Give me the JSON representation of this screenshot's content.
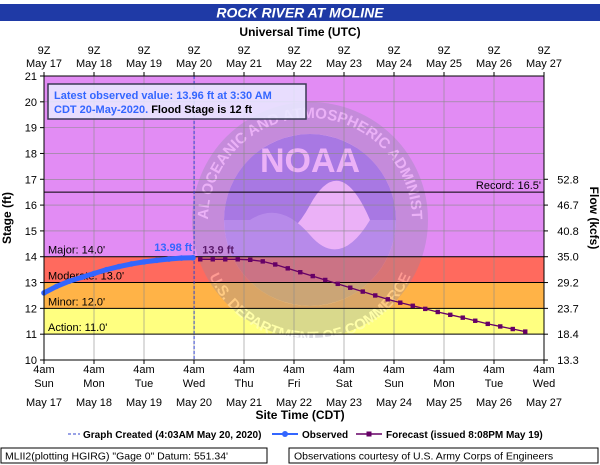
{
  "header": {
    "title": "ROCK RIVER AT MOLINE",
    "top_axis_title": "Universal Time (UTC)",
    "bottom_axis_title": "Site Time (CDT)"
  },
  "info_box": {
    "line1": "Latest observed value: 13.96 ft at 3:30 AM",
    "line2_date": "CDT 20-May-2020.",
    "line2_flood": " Flood Stage is 12 ft"
  },
  "watermark": {
    "logo_text": "NOAA",
    "ring_top": "NATIONAL OCEANIC AND ATMOSPHERIC ADMINISTRATION",
    "ring_bottom": "U.S. DEPARTMENT OF COMMERCE"
  },
  "legend": {
    "graph_created": "Graph Created (4:03AM May 20, 2020)",
    "observed": "Observed",
    "forecast": "Forecast (issued 8:08PM May 19)"
  },
  "footer": {
    "left": "MLII2(plotting HGIRG) \"Gage 0\" Datum: 551.34'",
    "right": "Observations courtesy of U.S. Army Corps of Engineers"
  },
  "chart_data": {
    "type": "line",
    "title": "ROCK RIVER AT MOLINE",
    "ylabel": "Stage (ft)",
    "y2label": "Flow (kcfs)",
    "ylim": [
      10,
      21
    ],
    "yticks": [
      10,
      11,
      12,
      13,
      14,
      15,
      16,
      17,
      18,
      19,
      20,
      21
    ],
    "xlim": [
      "2020-05-17 04:00",
      "2020-05-27 04:00"
    ],
    "top_ticks": [
      {
        "date": "2020-05-17 04:00",
        "label1": "9Z",
        "label2": "May 17"
      },
      {
        "date": "2020-05-18 04:00",
        "label1": "9Z",
        "label2": "May 18"
      },
      {
        "date": "2020-05-19 04:00",
        "label1": "9Z",
        "label2": "May 19"
      },
      {
        "date": "2020-05-20 04:00",
        "label1": "9Z",
        "label2": "May 20"
      },
      {
        "date": "2020-05-21 04:00",
        "label1": "9Z",
        "label2": "May 21"
      },
      {
        "date": "2020-05-22 04:00",
        "label1": "9Z",
        "label2": "May 22"
      },
      {
        "date": "2020-05-23 04:00",
        "label1": "9Z",
        "label2": "May 23"
      },
      {
        "date": "2020-05-24 04:00",
        "label1": "9Z",
        "label2": "May 24"
      },
      {
        "date": "2020-05-25 04:00",
        "label1": "9Z",
        "label2": "May 25"
      },
      {
        "date": "2020-05-26 04:00",
        "label1": "9Z",
        "label2": "May 26"
      },
      {
        "date": "2020-05-27 04:00",
        "label1": "9Z",
        "label2": "May 27"
      }
    ],
    "bottom_ticks": [
      {
        "date": "2020-05-17 04:00",
        "time": "4am",
        "day": "Sun",
        "date_label": "May 17"
      },
      {
        "date": "2020-05-18 04:00",
        "time": "4am",
        "day": "Mon",
        "date_label": "May 18"
      },
      {
        "date": "2020-05-19 04:00",
        "time": "4am",
        "day": "Tue",
        "date_label": "May 19"
      },
      {
        "date": "2020-05-20 04:00",
        "time": "4am",
        "day": "Wed",
        "date_label": "May 20"
      },
      {
        "date": "2020-05-21 04:00",
        "time": "4am",
        "day": "Thu",
        "date_label": "May 21"
      },
      {
        "date": "2020-05-22 04:00",
        "time": "4am",
        "day": "Fri",
        "date_label": "May 22"
      },
      {
        "date": "2020-05-23 04:00",
        "time": "4am",
        "day": "Sat",
        "date_label": "May 23"
      },
      {
        "date": "2020-05-24 04:00",
        "time": "4am",
        "day": "Sun",
        "date_label": "May 24"
      },
      {
        "date": "2020-05-25 04:00",
        "time": "4am",
        "day": "Mon",
        "date_label": "May 25"
      },
      {
        "date": "2020-05-26 04:00",
        "time": "4am",
        "day": "Tue",
        "date_label": "May 26"
      },
      {
        "date": "2020-05-27 04:00",
        "time": "4am",
        "day": "Wed",
        "date_label": "May 27"
      }
    ],
    "flow_ticks": [
      {
        "stage": 10,
        "label": "13.3"
      },
      {
        "stage": 11,
        "label": "18.4"
      },
      {
        "stage": 12,
        "label": "23.7"
      },
      {
        "stage": 13,
        "label": "29.2"
      },
      {
        "stage": 14,
        "label": "35.0"
      },
      {
        "stage": 15,
        "label": "40.8"
      },
      {
        "stage": 16,
        "label": "46.7"
      },
      {
        "stage": 17,
        "label": "52.8"
      }
    ],
    "flood_bands": [
      {
        "name": "action",
        "from": 11,
        "to": 12,
        "color": "#ffff80"
      },
      {
        "name": "minor",
        "from": 12,
        "to": 13,
        "color": "#ffb347"
      },
      {
        "name": "moderate",
        "from": 13,
        "to": 14,
        "color": "#ff6a5e"
      },
      {
        "name": "major",
        "from": 14,
        "to": 21,
        "color": "#e28cf4"
      }
    ],
    "threshold_lines": [
      {
        "value": 11,
        "label": "Action: 11.0'",
        "side": "left"
      },
      {
        "value": 12,
        "label": "Minor: 12.0'",
        "side": "left"
      },
      {
        "value": 13,
        "label": "Moderate: 13.0'",
        "side": "left"
      },
      {
        "value": 14,
        "label": "Major: 14.0'",
        "side": "left"
      },
      {
        "value": 16.5,
        "label": "Record: 16.5'",
        "side": "right"
      }
    ],
    "graph_created": "2020-05-20 04:03",
    "observed": {
      "name": "Observed",
      "color": "#3366ff",
      "x": [
        "2020-05-17 04:00",
        "2020-05-17 10:00",
        "2020-05-17 16:00",
        "2020-05-17 22:00",
        "2020-05-18 04:00",
        "2020-05-18 10:00",
        "2020-05-18 16:00",
        "2020-05-18 22:00",
        "2020-05-19 04:00",
        "2020-05-19 10:00",
        "2020-05-19 16:00",
        "2020-05-19 22:00",
        "2020-05-20 03:30"
      ],
      "y": [
        12.6,
        12.85,
        13.05,
        13.2,
        13.35,
        13.5,
        13.62,
        13.72,
        13.8,
        13.86,
        13.91,
        13.95,
        13.96
      ],
      "peak_label": {
        "x": "2020-05-19 18:00",
        "y": 13.98,
        "text": "13.98 ft"
      }
    },
    "forecast": {
      "name": "Forecast (issued 8:08PM May 19)",
      "color": "#660066",
      "x": [
        "2020-05-20 07:00",
        "2020-05-20 13:00",
        "2020-05-20 19:00",
        "2020-05-21 01:00",
        "2020-05-21 07:00",
        "2020-05-21 13:00",
        "2020-05-21 19:00",
        "2020-05-22 01:00",
        "2020-05-22 07:00",
        "2020-05-22 13:00",
        "2020-05-22 19:00",
        "2020-05-23 01:00",
        "2020-05-23 07:00",
        "2020-05-23 13:00",
        "2020-05-23 19:00",
        "2020-05-24 01:00",
        "2020-05-24 07:00",
        "2020-05-24 13:00",
        "2020-05-24 19:00",
        "2020-05-25 01:00",
        "2020-05-25 07:00",
        "2020-05-25 13:00",
        "2020-05-25 19:00",
        "2020-05-26 01:00",
        "2020-05-26 07:00",
        "2020-05-26 13:00",
        "2020-05-26 19:00"
      ],
      "y": [
        13.9,
        13.9,
        13.9,
        13.9,
        13.88,
        13.82,
        13.7,
        13.55,
        13.4,
        13.25,
        13.1,
        12.95,
        12.8,
        12.65,
        12.5,
        12.35,
        12.22,
        12.1,
        11.98,
        11.86,
        11.75,
        11.64,
        11.52,
        11.4,
        11.3,
        11.2,
        11.1
      ],
      "start_label": {
        "x": "2020-05-20 07:00",
        "y": 13.9,
        "text": "13.9 ft"
      }
    }
  }
}
